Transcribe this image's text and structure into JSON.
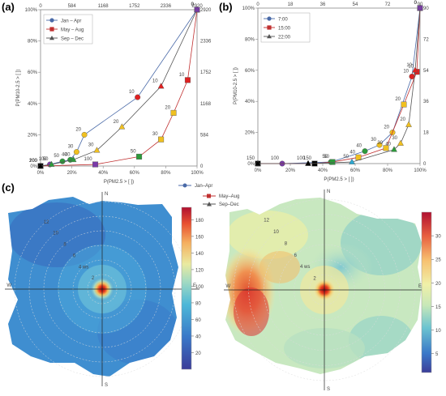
{
  "panel_labels": {
    "a": "(a)",
    "b": "(b)",
    "c": "(c)"
  },
  "colors": {
    "teal": "#2ca7a7",
    "red": "#e02020",
    "yellow": "#f0c020",
    "green": "#2c9a3a",
    "purple": "#7a3aa8",
    "black": "#000000"
  },
  "chart_data": [
    {
      "id": "a",
      "type": "line",
      "xlabel": "P(PM2.5 > [ ])",
      "ylabel": "P(PM10-2.5 > [ ])",
      "xlim": [
        0,
        100
      ],
      "ylim": [
        0,
        100
      ],
      "xticks": [
        "0%",
        "20%",
        "40%",
        "60%",
        "80%",
        "100%"
      ],
      "yticks": [
        "0%",
        "20%",
        "40%",
        "60%",
        "80%",
        "100%"
      ],
      "top_ticks": [
        "0",
        "584",
        "1168",
        "1752",
        "2336",
        "2920"
      ],
      "right_ticks": [
        "0",
        "584",
        "1168",
        "1752",
        "2336",
        "2920"
      ],
      "legend": {
        "position": "top-left",
        "entries": [
          "Jan – Apr",
          "May – Aug",
          "Sep – Dec"
        ]
      },
      "series": [
        {
          "name": "Jan – Apr",
          "marker": "circle",
          "line_color": "#4a6aa8",
          "points": [
            {
              "x": 0,
              "y": 0,
              "label": "200",
              "fill": "#000000"
            },
            {
              "x": 6,
              "y": 1,
              "label": "100",
              "fill": "#7a3aa8"
            },
            {
              "x": 14,
              "y": 3,
              "label": "50",
              "fill": "#2c9a3a"
            },
            {
              "x": 19,
              "y": 4,
              "label": "40",
              "fill": "#2c9a3a"
            },
            {
              "x": 23,
              "y": 9,
              "label": "30",
              "fill": "#f0c020"
            },
            {
              "x": 28,
              "y": 20,
              "label": "20",
              "fill": "#f0c020"
            },
            {
              "x": 62,
              "y": 44,
              "label": "10",
              "fill": "#e02020"
            },
            {
              "x": 100,
              "y": 100,
              "label": "0",
              "fill": "#7a3aa8"
            }
          ]
        },
        {
          "name": "May – Aug",
          "marker": "square",
          "line_color": "#c03030",
          "points": [
            {
              "x": 0,
              "y": 0,
              "label": "200",
              "fill": "#000000"
            },
            {
              "x": 35,
              "y": 1,
              "label": "100",
              "fill": "#7a3aa8"
            },
            {
              "x": 63,
              "y": 6,
              "label": "50",
              "fill": "#2c9a3a"
            },
            {
              "x": 77,
              "y": 17,
              "label": "30",
              "fill": "#f0c020"
            },
            {
              "x": 85,
              "y": 34,
              "label": "20",
              "fill": "#f0c020"
            },
            {
              "x": 94,
              "y": 55,
              "label": "10",
              "fill": "#e02020"
            },
            {
              "x": 100,
              "y": 100,
              "label": "0",
              "fill": "#7a3aa8"
            }
          ]
        },
        {
          "name": "Sep – Dec",
          "marker": "triangle",
          "line_color": "#555555",
          "points": [
            {
              "x": 0,
              "y": 0,
              "label": "100",
              "fill": "#000000"
            },
            {
              "x": 7,
              "y": 1,
              "label": "50",
              "fill": "#2c9a3a"
            },
            {
              "x": 21,
              "y": 4,
              "label": "40",
              "fill": "#2c9a3a"
            },
            {
              "x": 36,
              "y": 10,
              "label": "30",
              "fill": "#f0c020"
            },
            {
              "x": 52,
              "y": 25,
              "label": "20",
              "fill": "#f0c020"
            },
            {
              "x": 77,
              "y": 51,
              "label": "10",
              "fill": "#e02020"
            },
            {
              "x": 100,
              "y": 100,
              "label": "0",
              "fill": "#7a3aa8"
            }
          ]
        }
      ]
    },
    {
      "id": "b",
      "type": "line",
      "xlabel": "P(PM2.5 > [ ])",
      "ylabel": "P(PM10-2.5 > [ ])",
      "xlim": [
        0,
        100
      ],
      "ylim": [
        0,
        100
      ],
      "xticks": [
        "0%",
        "20%",
        "40%",
        "60%",
        "80%",
        "100%"
      ],
      "yticks": [
        "0%",
        "20%",
        "40%",
        "60%",
        "80%",
        "100%"
      ],
      "top_ticks": [
        "0",
        "18",
        "36",
        "54",
        "72",
        "90"
      ],
      "right_ticks": [
        "0",
        "18",
        "36",
        "54",
        "72",
        "90"
      ],
      "legend": {
        "position": "top-left",
        "entries": [
          "7:00",
          "15:00",
          "22:00"
        ]
      },
      "series": [
        {
          "name": "7:00",
          "marker": "circle",
          "line_color": "#4a6aa8",
          "points": [
            {
              "x": 0,
              "y": 0,
              "label": "",
              "fill": "#000000"
            },
            {
              "x": 15,
              "y": 0,
              "label": "100",
              "fill": "#7a3aa8"
            },
            {
              "x": 45,
              "y": 1,
              "label": "50",
              "fill": "#2c9a3a"
            },
            {
              "x": 66,
              "y": 8,
              "label": "40",
              "fill": "#2c9a3a"
            },
            {
              "x": 75,
              "y": 12,
              "label": "30",
              "fill": "#f0c020"
            },
            {
              "x": 83,
              "y": 20,
              "label": "20",
              "fill": "#f0c020"
            },
            {
              "x": 95,
              "y": 56,
              "label": "10",
              "fill": "#e02020"
            },
            {
              "x": 100,
              "y": 100,
              "label": "0",
              "fill": "#7a3aa8"
            }
          ]
        },
        {
          "name": "15:00",
          "marker": "square",
          "line_color": "#c03030",
          "points": [
            {
              "x": 0,
              "y": 0,
              "label": "",
              "fill": "#000000"
            },
            {
              "x": 35,
              "y": 0,
              "label": "150",
              "fill": "#000000"
            },
            {
              "x": 46,
              "y": 1,
              "label": "50",
              "fill": "#2c9a3a"
            },
            {
              "x": 62,
              "y": 4,
              "label": "40",
              "fill": "#f0c020"
            },
            {
              "x": 79,
              "y": 10,
              "label": "30",
              "fill": "#f0c020"
            },
            {
              "x": 90,
              "y": 38,
              "label": "20",
              "fill": "#f0c020"
            },
            {
              "x": 98,
              "y": 59,
              "label": "10",
              "fill": "#e02020"
            },
            {
              "x": 100,
              "y": 100,
              "label": "0",
              "fill": "#7a3aa8"
            }
          ]
        },
        {
          "name": "22:00",
          "marker": "triangle",
          "line_color": "#555555",
          "points": [
            {
              "x": 0,
              "y": 0,
              "label": "150",
              "fill": "#000000"
            },
            {
              "x": 31,
              "y": 0,
              "label": "100",
              "fill": "#000000"
            },
            {
              "x": 58,
              "y": 1,
              "label": "50",
              "fill": "#2ca7d0"
            },
            {
              "x": 84,
              "y": 9,
              "label": "40",
              "fill": "#2c9a3a"
            },
            {
              "x": 88,
              "y": 13,
              "label": "30",
              "fill": "#f0c020"
            },
            {
              "x": 93,
              "y": 25,
              "label": "20",
              "fill": "#f0c020"
            },
            {
              "x": 97,
              "y": 60,
              "label": "10",
              "fill": "#e02020"
            },
            {
              "x": 100,
              "y": 100,
              "label": "0",
              "fill": "#7a3aa8"
            }
          ]
        }
      ]
    },
    {
      "id": "c-left",
      "type": "heatmap",
      "polar": true,
      "directions": [
        "N",
        "E",
        "S",
        "W"
      ],
      "ring_labels": [
        "2",
        "4 ws",
        "6",
        "8",
        "10",
        "12"
      ],
      "colorbar_ticks": [
        "20",
        "40",
        "60",
        "80",
        "100",
        "120",
        "140",
        "160",
        "180"
      ],
      "colorbar_range": [
        0,
        195
      ]
    },
    {
      "id": "c-right",
      "type": "heatmap",
      "polar": true,
      "directions": [
        "N",
        "E",
        "S",
        "W"
      ],
      "ring_labels": [
        "2",
        "4 ws",
        "6",
        "8",
        "10",
        "12"
      ],
      "colorbar_ticks": [
        "5",
        "10",
        "15",
        "20",
        "25",
        "30"
      ],
      "colorbar_range": [
        1,
        35
      ]
    }
  ],
  "c_legend": [
    "Jan–Apr",
    "May–Aug",
    "Sep–Dec"
  ]
}
